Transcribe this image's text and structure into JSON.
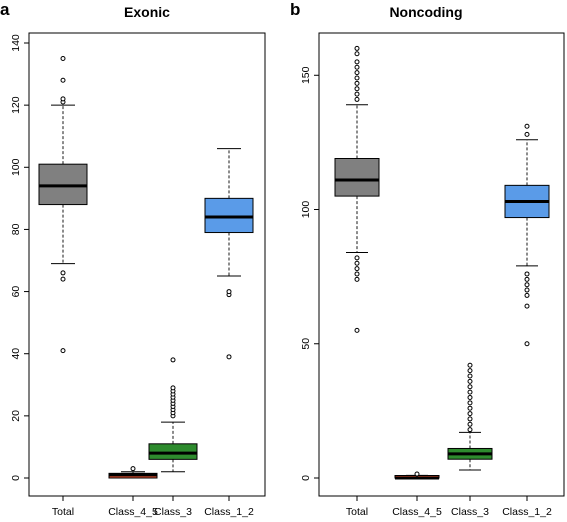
{
  "chart_data": [
    {
      "type": "box",
      "panel": "a",
      "title": "Exonic",
      "categories": [
        "Total",
        "Class_4_5",
        "Class_3",
        "Class_1_2"
      ],
      "ylim": [
        0,
        140
      ],
      "yticks": [
        0,
        20,
        40,
        60,
        80,
        100,
        120,
        140
      ],
      "colors": [
        "#808080",
        "#e05030",
        "#2e8b2e",
        "#5a9be8"
      ],
      "boxes": [
        {
          "name": "Total",
          "lower_whisker": 69,
          "q1": 88,
          "median": 94,
          "q3": 101,
          "upper_whisker": 120,
          "outliers": [
            41,
            64,
            66,
            121,
            122,
            128,
            135
          ]
        },
        {
          "name": "Class_4_5",
          "lower_whisker": 0,
          "q1": 0,
          "median": 1,
          "q3": 1.5,
          "upper_whisker": 2,
          "outliers": [
            3
          ]
        },
        {
          "name": "Class_3",
          "lower_whisker": 2,
          "q1": 6,
          "median": 8,
          "q3": 11,
          "upper_whisker": 18,
          "outliers": [
            20,
            21,
            22,
            23,
            24,
            25,
            26,
            27,
            28,
            29,
            38
          ]
        },
        {
          "name": "Class_1_2",
          "lower_whisker": 65,
          "q1": 79,
          "median": 84,
          "q3": 90,
          "upper_whisker": 106,
          "outliers": [
            39,
            59,
            60
          ]
        }
      ]
    },
    {
      "type": "box",
      "panel": "b",
      "title": "Noncoding",
      "categories": [
        "Total",
        "Class_4_5",
        "Class_3",
        "Class_1_2"
      ],
      "ylim": [
        0,
        165
      ],
      "yticks": [
        0,
        50,
        100,
        150
      ],
      "colors": [
        "#808080",
        "#e05030",
        "#2e8b2e",
        "#5a9be8"
      ],
      "boxes": [
        {
          "name": "Total",
          "lower_whisker": 84,
          "q1": 105,
          "median": 111,
          "q3": 119,
          "upper_whisker": 139,
          "outliers": [
            55,
            74,
            76,
            78,
            80,
            82,
            141,
            143,
            145,
            147,
            149,
            151,
            153,
            155,
            158,
            160
          ]
        },
        {
          "name": "Class_4_5",
          "lower_whisker": 0,
          "q1": 0,
          "median": 0,
          "q3": 0.5,
          "upper_whisker": 1,
          "outliers": [
            1.5
          ]
        },
        {
          "name": "Class_3",
          "lower_whisker": 3,
          "q1": 7,
          "median": 9,
          "q3": 11,
          "upper_whisker": 17,
          "outliers": [
            18,
            20,
            22,
            24,
            26,
            28,
            30,
            32,
            34,
            36,
            38,
            40,
            42
          ]
        },
        {
          "name": "Class_1_2",
          "lower_whisker": 79,
          "q1": 97,
          "median": 103,
          "q3": 109,
          "upper_whisker": 126,
          "outliers": [
            50,
            64,
            68,
            70,
            72,
            74,
            76,
            128,
            131
          ]
        }
      ]
    }
  ]
}
